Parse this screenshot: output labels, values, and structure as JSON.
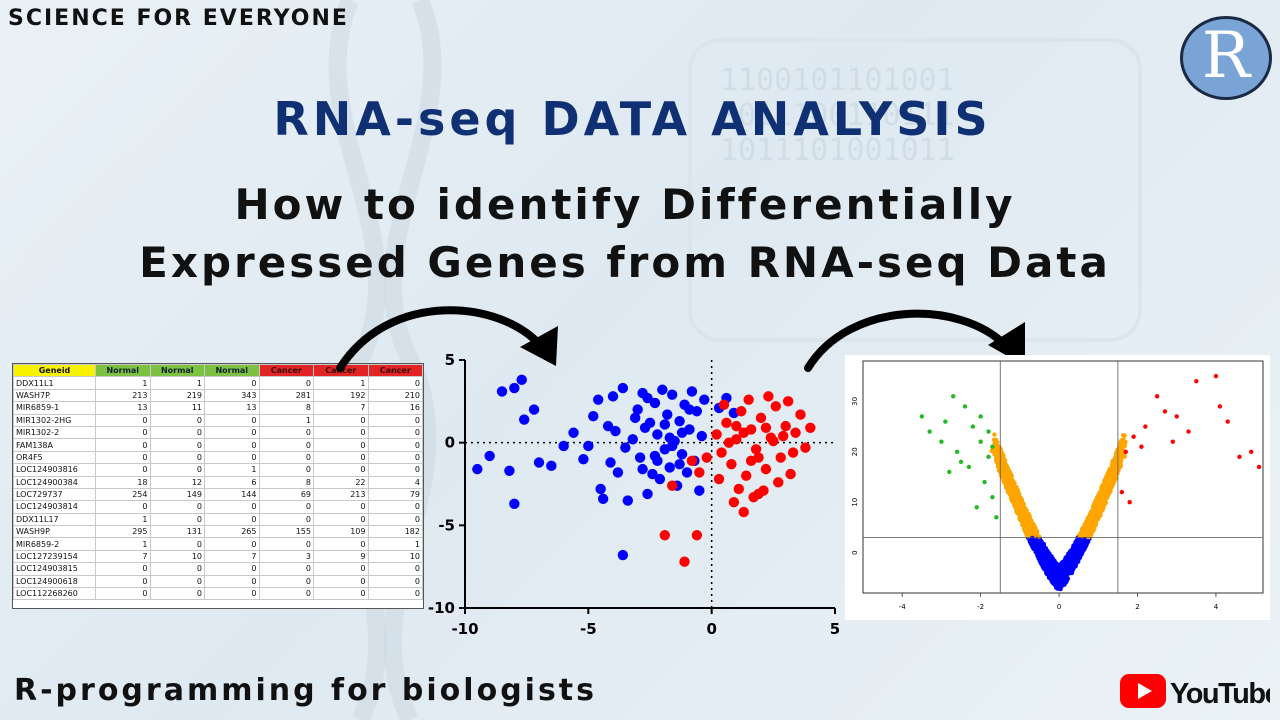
{
  "header": {
    "brand": "SCIENCE FOR EVERYONE",
    "logo_letter": "R",
    "title": "RNA-seq DATA ANALYSIS",
    "subtitle_line1": "How to identify Differentially",
    "subtitle_line2": "Expressed Genes from RNA-seq Data"
  },
  "footer": {
    "tagline": "R-programming for biologists",
    "youtube_label": "YouTube"
  },
  "colors": {
    "title": "#0f3174",
    "normal_header": "#7dc142",
    "cancer_header": "#e22424",
    "geneid_header": "#f7f200",
    "blue": "#0000ff",
    "red": "#ff0000",
    "green": "#22bb22",
    "orange": "#ffa500",
    "youtube_red": "#ff0000"
  },
  "table": {
    "headers": [
      "Geneid",
      "Normal",
      "Normal",
      "Normal",
      "Cancer",
      "Cancer",
      "Cancer"
    ],
    "rows": [
      [
        "DDX11L1",
        "1",
        "1",
        "0",
        "0",
        "1",
        "0"
      ],
      [
        "WASH7P",
        "213",
        "219",
        "343",
        "281",
        "192",
        "210"
      ],
      [
        "MIR6859-1",
        "13",
        "11",
        "13",
        "8",
        "7",
        "16"
      ],
      [
        "MIR1302-2HG",
        "0",
        "0",
        "0",
        "1",
        "0",
        "0"
      ],
      [
        "MIR1302-2",
        "0",
        "0",
        "0",
        "0",
        "0",
        "0"
      ],
      [
        "FAM138A",
        "0",
        "0",
        "0",
        "0",
        "0",
        "0"
      ],
      [
        "OR4F5",
        "0",
        "0",
        "0",
        "0",
        "0",
        "0"
      ],
      [
        "LOC124903816",
        "0",
        "0",
        "1",
        "0",
        "0",
        "0"
      ],
      [
        "LOC124900384",
        "18",
        "12",
        "6",
        "8",
        "22",
        "4"
      ],
      [
        "LOC729737",
        "254",
        "149",
        "144",
        "69",
        "213",
        "79"
      ],
      [
        "LOC124903814",
        "0",
        "0",
        "0",
        "0",
        "0",
        "0"
      ],
      [
        "DDX11L17",
        "1",
        "0",
        "0",
        "0",
        "0",
        "0"
      ],
      [
        "WASH9P",
        "295",
        "131",
        "265",
        "155",
        "109",
        "182"
      ],
      [
        "MIR6859-2",
        "1",
        "0",
        "0",
        "0",
        "0",
        "1"
      ],
      [
        "LOC127239154",
        "7",
        "10",
        "7",
        "3",
        "9",
        "10"
      ],
      [
        "LOC124903815",
        "0",
        "0",
        "0",
        "0",
        "0",
        "0"
      ],
      [
        "LOC124900618",
        "0",
        "0",
        "0",
        "0",
        "0",
        "0"
      ],
      [
        "LOC112268260",
        "0",
        "0",
        "0",
        "0",
        "0",
        "0"
      ]
    ]
  },
  "chart_data": [
    {
      "type": "scatter",
      "xlim": [
        -10,
        5
      ],
      "ylim": [
        -10,
        5
      ],
      "xticks": [
        -10,
        -5,
        0,
        5
      ],
      "yticks": [
        5,
        0,
        -5,
        -10
      ],
      "series": [
        {
          "color": "#0000ff",
          "points": [
            [
              -9.5,
              -1.6
            ],
            [
              -9,
              -0.8
            ],
            [
              -8.5,
              3.1
            ],
            [
              -8,
              3.3
            ],
            [
              -7.7,
              3.8
            ],
            [
              -7.6,
              1.4
            ],
            [
              -7.2,
              2.0
            ],
            [
              -8.2,
              -1.7
            ],
            [
              -8.0,
              -3.7
            ],
            [
              -7.0,
              -1.2
            ],
            [
              -6.5,
              -1.4
            ],
            [
              -6.0,
              -0.2
            ],
            [
              -5.6,
              0.6
            ],
            [
              -5.2,
              -1.0
            ],
            [
              -5.0,
              -0.2
            ],
            [
              -4.8,
              1.6
            ],
            [
              -4.6,
              2.6
            ],
            [
              -4.5,
              -2.8
            ],
            [
              -4.4,
              -3.4
            ],
            [
              -4.2,
              1.0
            ],
            [
              -4.0,
              2.8
            ],
            [
              -3.8,
              -1.8
            ],
            [
              -3.6,
              3.3
            ],
            [
              -3.4,
              -3.5
            ],
            [
              -3.2,
              0.2
            ],
            [
              -3.0,
              2.0
            ],
            [
              -2.9,
              -0.9
            ],
            [
              -2.8,
              3.0
            ],
            [
              -2.6,
              -3.1
            ],
            [
              -2.5,
              1.2
            ],
            [
              -2.4,
              -1.9
            ],
            [
              -2.3,
              2.4
            ],
            [
              -2.2,
              0.5
            ],
            [
              -2.1,
              -2.2
            ],
            [
              -2.0,
              3.2
            ],
            [
              -1.9,
              -0.4
            ],
            [
              -1.8,
              1.7
            ],
            [
              -1.7,
              -1.5
            ],
            [
              -1.6,
              2.9
            ],
            [
              -1.5,
              0.1
            ],
            [
              -1.4,
              -2.6
            ],
            [
              -1.3,
              1.3
            ],
            [
              -1.2,
              -0.7
            ],
            [
              -1.1,
              2.3
            ],
            [
              -1.0,
              -1.8
            ],
            [
              -0.9,
              0.8
            ],
            [
              -0.8,
              3.1
            ],
            [
              -0.7,
              -1.1
            ],
            [
              -0.6,
              1.9
            ],
            [
              -0.5,
              -2.9
            ],
            [
              -0.4,
              0.4
            ],
            [
              -0.3,
              2.6
            ],
            [
              -3.6,
              -6.8
            ],
            [
              -2.7,
              0.9
            ],
            [
              -2.3,
              -0.8
            ],
            [
              -1.9,
              1.1
            ],
            [
              -3.5,
              -0.3
            ],
            [
              -3.1,
              1.5
            ],
            [
              -2.6,
              2.7
            ],
            [
              -1.6,
              -0.2
            ],
            [
              -1.2,
              0.6
            ],
            [
              -0.9,
              2.0
            ],
            [
              -4.1,
              -1.2
            ],
            [
              -3.9,
              0.7
            ],
            [
              -2.8,
              -1.6
            ],
            [
              -2.2,
              -1.1
            ],
            [
              -1.7,
              0.3
            ],
            [
              -1.3,
              -1.3
            ],
            [
              0.3,
              2.1
            ],
            [
              0.6,
              2.7
            ],
            [
              0.9,
              1.8
            ]
          ]
        },
        {
          "color": "#ff0000",
          "points": [
            [
              0.2,
              0.5
            ],
            [
              0.4,
              -0.6
            ],
            [
              0.6,
              1.2
            ],
            [
              0.8,
              -1.3
            ],
            [
              1.0,
              0.2
            ],
            [
              1.2,
              1.9
            ],
            [
              1.4,
              -2.0
            ],
            [
              1.6,
              0.8
            ],
            [
              1.8,
              -0.4
            ],
            [
              2.0,
              1.5
            ],
            [
              2.2,
              -1.6
            ],
            [
              2.4,
              0.3
            ],
            [
              2.6,
              2.2
            ],
            [
              2.8,
              -0.9
            ],
            [
              3.0,
              1.0
            ],
            [
              3.2,
              -1.9
            ],
            [
              3.4,
              0.6
            ],
            [
              3.6,
              1.7
            ],
            [
              3.8,
              -0.3
            ],
            [
              4.0,
              0.9
            ],
            [
              0.5,
              2.3
            ],
            [
              1.1,
              -2.8
            ],
            [
              1.5,
              2.6
            ],
            [
              1.9,
              -3.1
            ],
            [
              2.3,
              2.8
            ],
            [
              2.7,
              -2.4
            ],
            [
              3.1,
              2.5
            ],
            [
              0.9,
              -3.6
            ],
            [
              1.3,
              -4.2
            ],
            [
              1.7,
              -3.3
            ],
            [
              2.1,
              -2.9
            ],
            [
              0.7,
              0.0
            ],
            [
              1.3,
              0.6
            ],
            [
              1.9,
              -0.9
            ],
            [
              2.5,
              0.1
            ],
            [
              3.3,
              -0.6
            ],
            [
              -0.5,
              -1.8
            ],
            [
              -0.8,
              -1.1
            ],
            [
              -1.6,
              -2.6
            ],
            [
              -1.9,
              -5.6
            ],
            [
              -0.6,
              -5.6
            ],
            [
              -1.1,
              -7.2
            ],
            [
              -0.2,
              -0.9
            ],
            [
              1.0,
              1.0
            ],
            [
              1.6,
              -1.1
            ],
            [
              2.2,
              0.9
            ],
            [
              2.9,
              0.4
            ],
            [
              0.3,
              -2.2
            ]
          ]
        }
      ]
    },
    {
      "type": "scatter",
      "xlim": [
        -5,
        5.2
      ],
      "ylim": [
        -8,
        38
      ],
      "xticks": [
        -4,
        -2,
        0,
        2,
        4
      ],
      "yticks": [
        0,
        10,
        20,
        30
      ],
      "thresholds": {
        "x": [
          -1.5,
          1.5
        ],
        "y": 3
      },
      "series": [
        {
          "color": "#22bb22",
          "name": "",
          "points": [
            [
              -2.7,
              31
            ],
            [
              -2.4,
              29
            ],
            [
              -3.5,
              27
            ],
            [
              -3.3,
              24
            ],
            [
              -2.9,
              26
            ],
            [
              -2.2,
              25
            ],
            [
              -2.0,
              22
            ],
            [
              -2.6,
              20
            ],
            [
              -1.8,
              19
            ],
            [
              -2.3,
              17
            ],
            [
              -1.9,
              14
            ],
            [
              -1.7,
              11
            ],
            [
              -2.1,
              9
            ],
            [
              -1.6,
              7
            ],
            [
              -3.0,
              22
            ],
            [
              -2.5,
              18
            ],
            [
              -1.8,
              24
            ],
            [
              -2.0,
              27
            ],
            [
              -2.8,
              16
            ],
            [
              -1.7,
              21
            ]
          ]
        },
        {
          "color": "#ff0000",
          "name": "",
          "points": [
            [
              4.0,
              35
            ],
            [
              4.1,
              29
            ],
            [
              4.3,
              26
            ],
            [
              4.9,
              20
            ],
            [
              5.1,
              17
            ],
            [
              4.6,
              19
            ],
            [
              3.5,
              34
            ],
            [
              2.7,
              28
            ],
            [
              2.2,
              25
            ],
            [
              1.9,
              23
            ],
            [
              2.5,
              31
            ],
            [
              3.0,
              27
            ],
            [
              1.7,
              20
            ],
            [
              1.6,
              12
            ],
            [
              1.8,
              10
            ],
            [
              2.1,
              21
            ],
            [
              3.3,
              24
            ],
            [
              2.9,
              22
            ]
          ]
        }
      ]
    }
  ]
}
